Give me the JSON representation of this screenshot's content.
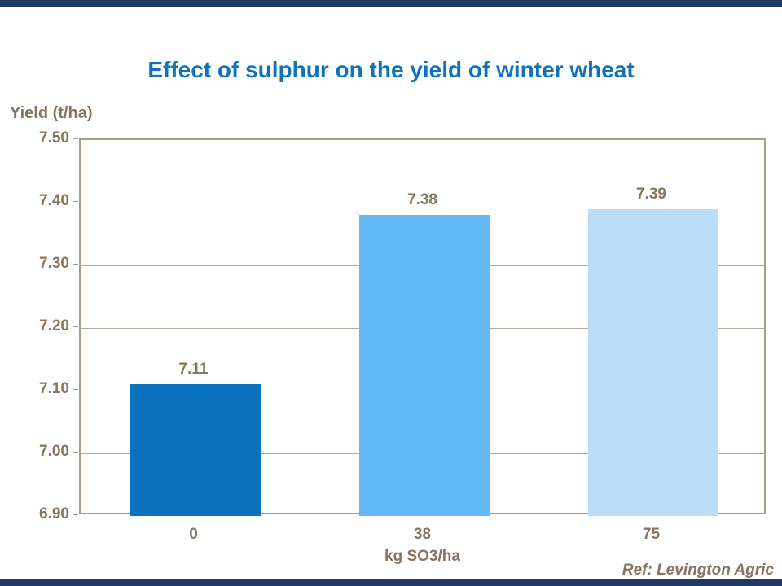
{
  "page": {
    "title": "Effect of sulphur on the yield of winter wheat",
    "ref_note": "Ref: Levington Agric"
  },
  "colors": {
    "title_blue": "#0E72BE",
    "text_brown": "#877460",
    "axis_border": "#A69A8B",
    "gridline": "#B3A799",
    "accent_strip": "#1F3864",
    "bar_fills": [
      "#0B72BF",
      "#64BAF7",
      "#BCDDF7"
    ]
  },
  "chart_data": {
    "type": "bar",
    "title": "Effect of sulphur on the yield of winter wheat",
    "ylabel": "Yield (t/ha)",
    "xlabel": "kg SO3/ha",
    "categories": [
      "0",
      "38",
      "75"
    ],
    "values": [
      7.11,
      7.38,
      7.39
    ],
    "value_labels": [
      "7.11",
      "7.38",
      "7.39"
    ],
    "ylim": [
      6.9,
      7.5
    ],
    "ytick_step": 0.1,
    "ytick_labels": [
      "6.90",
      "7.00",
      "7.10",
      "7.20",
      "7.30",
      "7.40",
      "7.50"
    ],
    "grid": true,
    "legend": false,
    "annotations": [
      "Ref: Levington Agric"
    ]
  }
}
